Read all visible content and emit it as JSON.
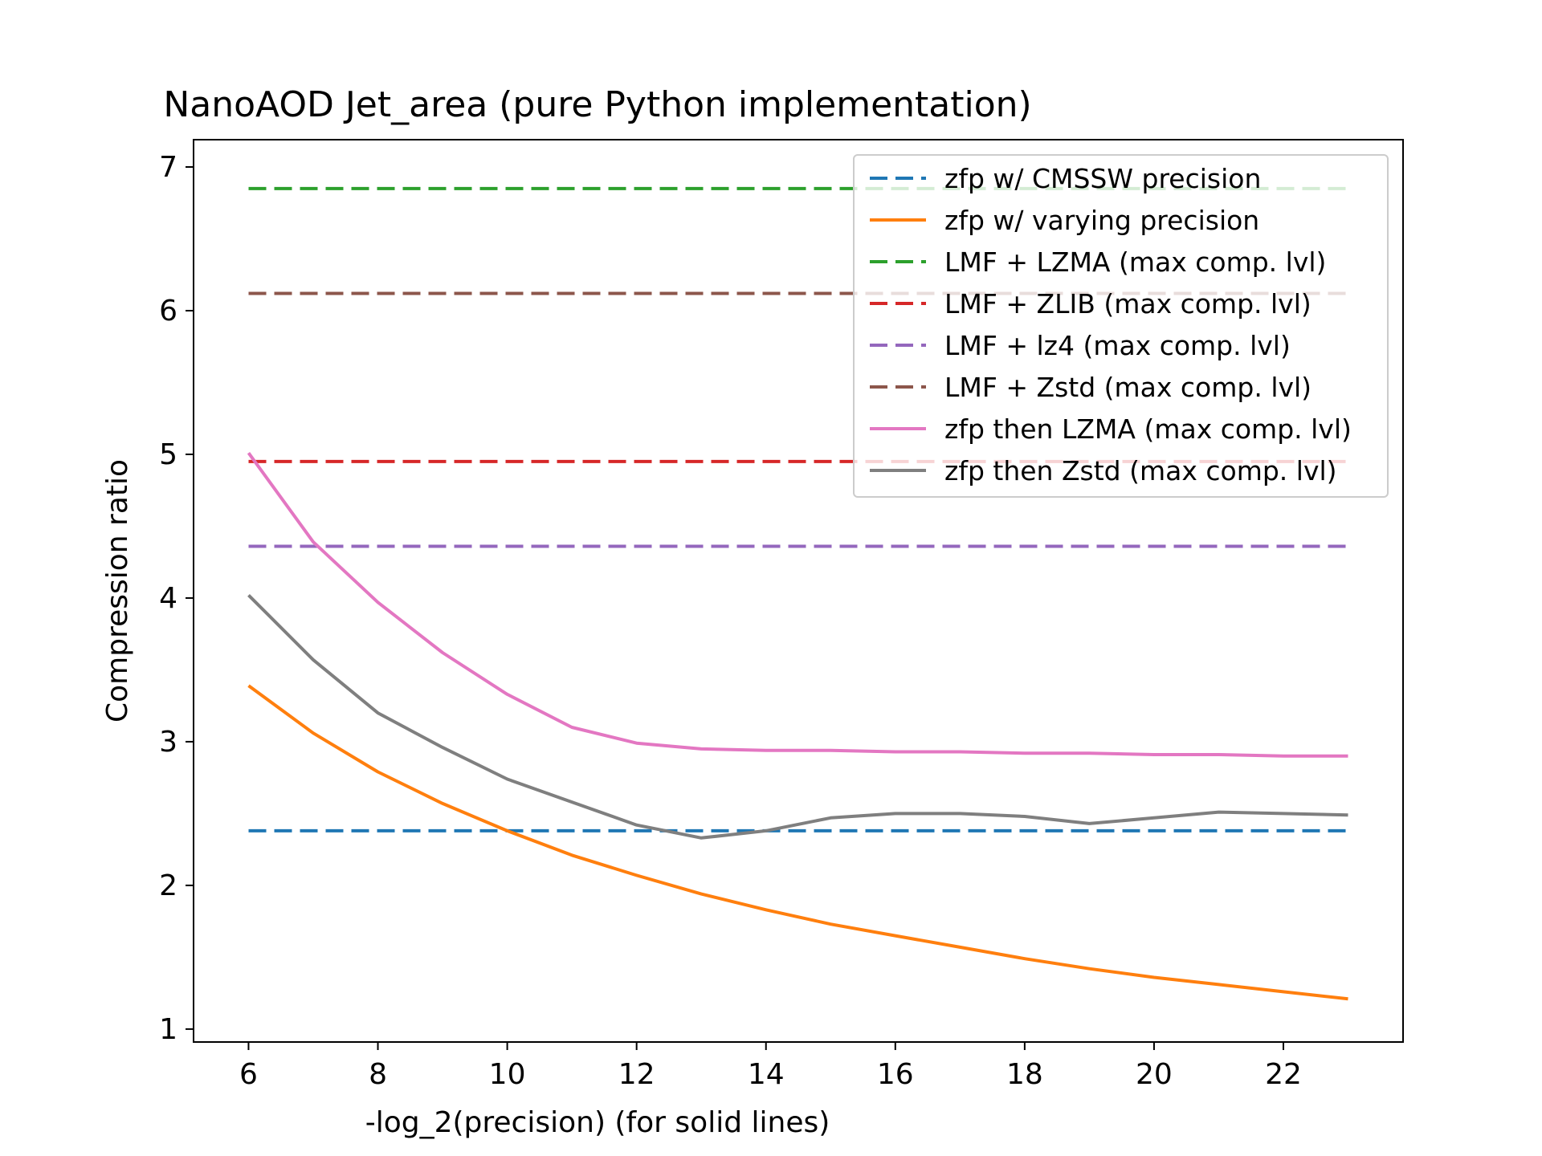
{
  "chart_data": {
    "type": "line",
    "title": "NanoAOD Jet_area (pure Python implementation)",
    "xlabel": "-log_2(precision) (for solid lines)",
    "ylabel": "Compression ratio",
    "xlim": [
      5.15,
      23.85
    ],
    "ylim": [
      0.91,
      7.19
    ],
    "xticks": [
      6,
      8,
      10,
      12,
      14,
      16,
      18,
      20,
      22
    ],
    "yticks": [
      1,
      2,
      3,
      4,
      5,
      6,
      7
    ],
    "grid": false,
    "legend_position": "top-right",
    "x": [
      6,
      7,
      8,
      9,
      10,
      11,
      12,
      13,
      14,
      15,
      16,
      17,
      18,
      19,
      20,
      21,
      22,
      23
    ],
    "series": [
      {
        "name": "zfp w/ CMSSW precision",
        "style": "dashed",
        "color": "#1f77b4",
        "values": [
          2.38,
          2.38,
          2.38,
          2.38,
          2.38,
          2.38,
          2.38,
          2.38,
          2.38,
          2.38,
          2.38,
          2.38,
          2.38,
          2.38,
          2.38,
          2.38,
          2.38,
          2.38
        ]
      },
      {
        "name": "zfp w/ varying precision",
        "style": "solid",
        "color": "#ff7f0e",
        "values": [
          3.39,
          3.06,
          2.79,
          2.57,
          2.38,
          2.21,
          2.07,
          1.94,
          1.83,
          1.73,
          1.65,
          1.57,
          1.49,
          1.42,
          1.36,
          1.31,
          1.26,
          1.21
        ]
      },
      {
        "name": "LMF + LZMA (max comp. lvl)",
        "style": "dashed",
        "color": "#2ca02c",
        "values": [
          6.85,
          6.85,
          6.85,
          6.85,
          6.85,
          6.85,
          6.85,
          6.85,
          6.85,
          6.85,
          6.85,
          6.85,
          6.85,
          6.85,
          6.85,
          6.85,
          6.85,
          6.85
        ]
      },
      {
        "name": "LMF + ZLIB (max comp. lvl)",
        "style": "dashed",
        "color": "#d62728",
        "values": [
          4.95,
          4.95,
          4.95,
          4.95,
          4.95,
          4.95,
          4.95,
          4.95,
          4.95,
          4.95,
          4.95,
          4.95,
          4.95,
          4.95,
          4.95,
          4.95,
          4.95,
          4.95
        ]
      },
      {
        "name": "LMF + lz4 (max comp. lvl)",
        "style": "dashed",
        "color": "#9467bd",
        "values": [
          4.36,
          4.36,
          4.36,
          4.36,
          4.36,
          4.36,
          4.36,
          4.36,
          4.36,
          4.36,
          4.36,
          4.36,
          4.36,
          4.36,
          4.36,
          4.36,
          4.36,
          4.36
        ]
      },
      {
        "name": "LMF + Zstd (max comp. lvl)",
        "style": "dashed",
        "color": "#8c564b",
        "values": [
          6.12,
          6.12,
          6.12,
          6.12,
          6.12,
          6.12,
          6.12,
          6.12,
          6.12,
          6.12,
          6.12,
          6.12,
          6.12,
          6.12,
          6.12,
          6.12,
          6.12,
          6.12
        ]
      },
      {
        "name": "zfp then LZMA (max comp. lvl)",
        "style": "solid",
        "color": "#e377c2",
        "values": [
          5.01,
          4.39,
          3.97,
          3.62,
          3.33,
          3.1,
          2.99,
          2.95,
          2.94,
          2.94,
          2.93,
          2.93,
          2.92,
          2.92,
          2.91,
          2.91,
          2.9,
          2.9
        ]
      },
      {
        "name": "zfp then Zstd (max comp. lvl)",
        "style": "solid",
        "color": "#7f7f7f",
        "values": [
          4.02,
          3.57,
          3.2,
          2.96,
          2.74,
          2.58,
          2.42,
          2.33,
          2.38,
          2.47,
          2.5,
          2.5,
          2.48,
          2.43,
          2.47,
          2.51,
          2.5,
          2.49
        ]
      }
    ]
  }
}
